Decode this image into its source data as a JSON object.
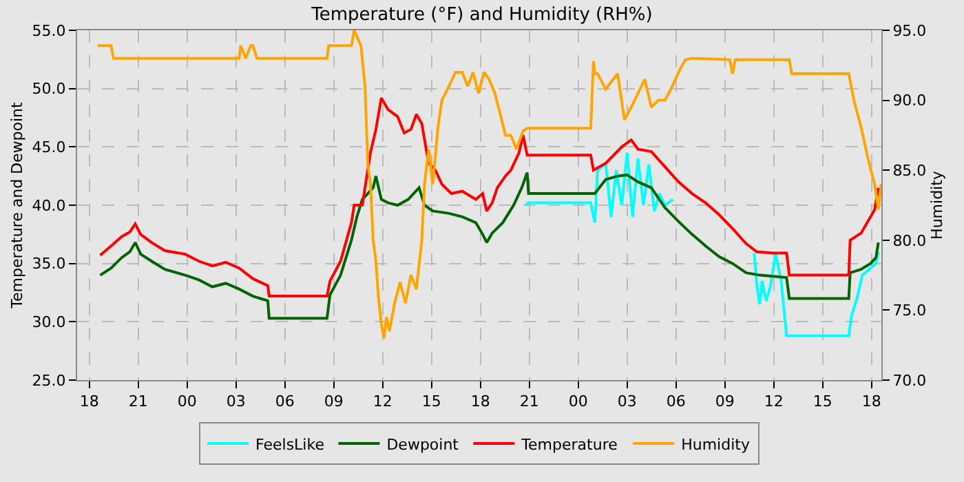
{
  "chart_data": {
    "type": "line",
    "title": "Temperature (°F) and Humidity (RH%)",
    "ylabel": "Temperature and Dewpoint",
    "y2label": "Humidity",
    "xlim": [
      "2000-01-01T17:15",
      "2000-01-03T18:36"
    ],
    "xticks": [
      {
        "value": "2000-01-01T18:00",
        "label": "18"
      },
      {
        "value": "2000-01-01T21:00",
        "label": "21"
      },
      {
        "value": "2000-01-02T00:00",
        "label": "00"
      },
      {
        "value": "2000-01-02T03:00",
        "label": "03"
      },
      {
        "value": "2000-01-02T06:00",
        "label": "06"
      },
      {
        "value": "2000-01-02T09:00",
        "label": "09"
      },
      {
        "value": "2000-01-02T12:00",
        "label": "12"
      },
      {
        "value": "2000-01-02T15:00",
        "label": "15"
      },
      {
        "value": "2000-01-02T18:00",
        "label": "18"
      },
      {
        "value": "2000-01-02T21:00",
        "label": "21"
      },
      {
        "value": "2000-01-03T00:00",
        "label": "00"
      },
      {
        "value": "2000-01-03T03:00",
        "label": "03"
      },
      {
        "value": "2000-01-03T06:00",
        "label": "06"
      },
      {
        "value": "2000-01-03T09:00",
        "label": "09"
      },
      {
        "value": "2000-01-03T12:00",
        "label": "12"
      },
      {
        "value": "2000-01-03T15:00",
        "label": "15"
      },
      {
        "value": "2000-01-03T18:00",
        "label": "18"
      }
    ],
    "ylim": [
      25,
      55
    ],
    "yticks": [
      {
        "value": 25,
        "label": "25.0"
      },
      {
        "value": 30,
        "label": "30.0"
      },
      {
        "value": 35,
        "label": "35.0"
      },
      {
        "value": 40,
        "label": "40.0"
      },
      {
        "value": 45,
        "label": "45.0"
      },
      {
        "value": 50,
        "label": "50.0"
      },
      {
        "value": 55,
        "label": "55.0"
      }
    ],
    "y2lim": [
      70,
      95
    ],
    "y2ticks": [
      {
        "value": 70,
        "label": "70.0"
      },
      {
        "value": 75,
        "label": "75.0"
      },
      {
        "value": 80,
        "label": "80.0"
      },
      {
        "value": 85,
        "label": "85.0"
      },
      {
        "value": 90,
        "label": "90.0"
      },
      {
        "value": 95,
        "label": "95.0"
      }
    ],
    "grid": true,
    "legend": "bottom",
    "series": [
      {
        "name": "FeelsLike",
        "color": "#00ffff",
        "x": [
          "2000-01-02T20:47",
          "2000-01-02T20:57",
          "2000-01-03T00:46",
          "2000-01-03T01:01",
          "2000-01-03T01:11",
          "2000-01-03T01:41",
          "2000-01-03T02:01",
          "2000-01-03T02:20",
          "2000-01-03T02:40",
          "2000-01-03T03:00",
          "2000-01-03T03:20",
          "2000-01-03T03:40",
          "2000-01-03T04:00",
          "2000-01-03T04:20",
          "2000-01-03T04:40",
          "2000-01-03T04:59",
          "2000-01-03T05:19",
          "2000-01-03T05:49",
          "2000-01-03T05:54",
          "2000-01-03T10:48",
          "2000-01-03T10:58",
          "2000-01-03T11:08",
          "2000-01-03T11:17",
          "2000-01-03T11:32",
          "2000-01-03T11:47",
          "2000-01-03T12:07",
          "2000-01-03T12:27",
          "2000-01-03T12:47",
          "2000-01-03T12:57",
          "2000-01-03T16:36",
          "2000-01-03T16:46",
          "2000-01-03T17:06",
          "2000-01-03T17:26",
          "2000-01-03T17:56",
          "2000-01-03T18:16",
          "2000-01-03T18:25"
        ],
        "values": [
          40.0,
          40.2,
          40.2,
          38.5,
          43.0,
          43.6,
          39.0,
          43.0,
          40.0,
          44.5,
          39.0,
          44.0,
          40.0,
          43.5,
          39.5,
          41.0,
          40.0,
          40.5,
          null,
          35.9,
          33.0,
          31.5,
          33.5,
          31.8,
          33.0,
          35.8,
          33.5,
          28.8,
          28.8,
          28.8,
          30.5,
          32.0,
          34.0,
          34.6,
          35.0,
          36.0
        ]
      },
      {
        "name": "Dewpoint",
        "color": "#006400",
        "x": [
          "2000-01-01T18:40",
          "2000-01-01T19:20",
          "2000-01-01T19:59",
          "2000-01-01T20:29",
          "2000-01-01T20:49",
          "2000-01-01T21:09",
          "2000-01-01T21:49",
          "2000-01-01T22:38",
          "2000-01-01T23:53",
          "2000-01-02T00:43",
          "2000-01-02T01:33",
          "2000-01-02T02:22",
          "2000-01-02T03:12",
          "2000-01-02T04:02",
          "2000-01-02T04:57",
          "2000-01-02T05:02",
          "2000-01-02T08:35",
          "2000-01-02T08:46",
          "2000-01-02T09:25",
          "2000-01-02T10:05",
          "2000-01-02T10:25",
          "2000-01-02T10:45",
          "2000-01-02T11:05",
          "2000-01-02T11:25",
          "2000-01-02T11:35",
          "2000-01-02T11:55",
          "2000-01-02T12:20",
          "2000-01-02T12:55",
          "2000-01-02T13:34",
          "2000-01-02T14:14",
          "2000-01-02T14:34",
          "2000-01-02T15:04",
          "2000-01-02T16:04",
          "2000-01-02T16:53",
          "2000-01-02T17:43",
          "2000-01-02T18:08",
          "2000-01-02T18:23",
          "2000-01-02T18:43",
          "2000-01-02T19:22",
          "2000-01-02T20:02",
          "2000-01-02T20:32",
          "2000-01-02T20:52",
          "2000-01-02T20:57",
          "2000-01-03T00:46",
          "2000-01-03T01:01",
          "2000-01-03T01:41",
          "2000-01-03T02:25",
          "2000-01-03T03:00",
          "2000-01-03T03:40",
          "2000-01-03T04:29",
          "2000-01-03T05:19",
          "2000-01-03T06:09",
          "2000-01-03T06:59",
          "2000-01-03T07:49",
          "2000-01-03T08:38",
          "2000-01-03T09:28",
          "2000-01-03T10:18",
          "2000-01-03T11:08",
          "2000-01-03T11:58",
          "2000-01-03T12:47",
          "2000-01-03T12:57",
          "2000-01-03T16:36",
          "2000-01-03T16:41",
          "2000-01-03T17:21",
          "2000-01-03T17:56",
          "2000-01-03T18:16",
          "2000-01-03T18:25"
        ],
        "values": [
          34.0,
          34.6,
          35.5,
          36.0,
          36.8,
          35.8,
          35.2,
          34.5,
          34.0,
          33.6,
          33.0,
          33.3,
          32.8,
          32.2,
          31.8,
          30.3,
          30.3,
          32.3,
          34.0,
          37.0,
          39.0,
          40.5,
          41.0,
          41.5,
          42.5,
          40.5,
          40.2,
          40.0,
          40.5,
          41.5,
          40.0,
          39.5,
          39.3,
          39.0,
          38.5,
          37.5,
          36.8,
          37.6,
          38.5,
          40.0,
          41.5,
          42.8,
          41.0,
          41.0,
          41.0,
          42.2,
          42.5,
          42.6,
          42.0,
          41.5,
          39.8,
          38.6,
          37.5,
          36.5,
          35.6,
          35.0,
          34.2,
          34.0,
          33.9,
          33.8,
          32.0,
          32.0,
          34.2,
          34.5,
          35.0,
          35.5,
          36.8
        ]
      },
      {
        "name": "Temperature",
        "color": "#ff0000",
        "x": [
          "2000-01-01T18:40",
          "2000-01-01T19:20",
          "2000-01-01T19:59",
          "2000-01-01T20:29",
          "2000-01-01T20:49",
          "2000-01-01T21:09",
          "2000-01-01T21:49",
          "2000-01-01T22:38",
          "2000-01-01T23:53",
          "2000-01-02T00:43",
          "2000-01-02T01:33",
          "2000-01-02T02:22",
          "2000-01-02T03:12",
          "2000-01-02T04:02",
          "2000-01-02T04:57",
          "2000-01-02T05:02",
          "2000-01-02T08:35",
          "2000-01-02T08:46",
          "2000-01-02T09:25",
          "2000-01-02T10:05",
          "2000-01-02T10:15",
          "2000-01-02T10:45",
          "2000-01-02T11:15",
          "2000-01-02T11:35",
          "2000-01-02T11:55",
          "2000-01-02T12:20",
          "2000-01-02T12:55",
          "2000-01-02T13:19",
          "2000-01-02T13:44",
          "2000-01-02T14:04",
          "2000-01-02T14:24",
          "2000-01-02T14:49",
          "2000-01-02T15:14",
          "2000-01-02T15:38",
          "2000-01-02T16:13",
          "2000-01-02T16:53",
          "2000-01-02T17:43",
          "2000-01-02T18:08",
          "2000-01-02T18:23",
          "2000-01-02T18:43",
          "2000-01-02T19:02",
          "2000-01-02T19:32",
          "2000-01-02T19:52",
          "2000-01-02T20:22",
          "2000-01-02T20:37",
          "2000-01-02T20:52",
          "2000-01-03T00:46",
          "2000-01-03T00:56",
          "2000-01-03T01:41",
          "2000-01-03T02:40",
          "2000-01-03T03:15",
          "2000-01-03T03:40",
          "2000-01-03T04:29",
          "2000-01-03T05:19",
          "2000-01-03T06:09",
          "2000-01-03T06:59",
          "2000-01-03T07:49",
          "2000-01-03T08:38",
          "2000-01-03T09:28",
          "2000-01-03T10:18",
          "2000-01-03T10:58",
          "2000-01-03T11:58",
          "2000-01-03T12:47",
          "2000-01-03T12:57",
          "2000-01-03T16:36",
          "2000-01-03T16:41",
          "2000-01-03T17:21",
          "2000-01-03T17:46",
          "2000-01-03T18:11",
          "2000-01-03T18:25"
        ],
        "values": [
          35.7,
          36.5,
          37.3,
          37.7,
          38.4,
          37.5,
          36.8,
          36.1,
          35.8,
          35.2,
          34.8,
          35.1,
          34.6,
          33.7,
          33.1,
          32.2,
          32.2,
          33.5,
          35.2,
          38.5,
          40.0,
          40.0,
          44.5,
          46.5,
          49.2,
          48.2,
          47.6,
          46.2,
          46.5,
          47.8,
          47.0,
          43.6,
          43.0,
          41.8,
          41.0,
          41.2,
          40.5,
          41.0,
          39.5,
          40.2,
          41.5,
          42.5,
          43.0,
          44.5,
          46.0,
          44.3,
          44.3,
          43.0,
          43.6,
          45.0,
          45.6,
          44.8,
          44.6,
          43.3,
          42.0,
          41.0,
          40.2,
          39.2,
          38.0,
          36.7,
          36.0,
          35.9,
          35.9,
          34.0,
          34.0,
          37.0,
          37.6,
          38.6,
          39.6,
          41.5
        ]
      },
      {
        "name": "Humidity",
        "color": "#ffa500",
        "axis": "y2",
        "x": [
          "2000-01-01T18:30",
          "2000-01-01T19:20",
          "2000-01-01T19:29",
          "2000-01-02T03:12",
          "2000-01-02T03:17",
          "2000-01-02T03:36",
          "2000-01-02T03:54",
          "2000-01-02T04:02",
          "2000-01-02T04:17",
          "2000-01-02T08:35",
          "2000-01-02T08:41",
          "2000-01-02T10:05",
          "2000-01-02T10:15",
          "2000-01-02T10:40",
          "2000-01-02T10:55",
          "2000-01-02T11:05",
          "2000-01-02T11:15",
          "2000-01-02T11:25",
          "2000-01-02T11:35",
          "2000-01-02T11:44",
          "2000-01-02T11:55",
          "2000-01-02T12:05",
          "2000-01-02T12:14",
          "2000-01-02T12:25",
          "2000-01-02T12:44",
          "2000-01-02T13:04",
          "2000-01-02T13:24",
          "2000-01-02T13:44",
          "2000-01-02T14:04",
          "2000-01-02T14:24",
          "2000-01-02T14:34",
          "2000-01-02T14:49",
          "2000-01-02T15:04",
          "2000-01-02T15:14",
          "2000-01-02T15:23",
          "2000-01-02T15:38",
          "2000-01-02T16:04",
          "2000-01-02T16:28",
          "2000-01-02T16:53",
          "2000-01-02T17:13",
          "2000-01-02T17:33",
          "2000-01-02T17:53",
          "2000-01-02T18:13",
          "2000-01-02T18:32",
          "2000-01-02T18:53",
          "2000-01-02T19:13",
          "2000-01-02T19:32",
          "2000-01-02T19:52",
          "2000-01-02T20:12",
          "2000-01-02T20:37",
          "2000-01-02T20:52",
          "2000-01-03T00:46",
          "2000-01-03T00:56",
          "2000-01-03T01:01",
          "2000-01-03T01:11",
          "2000-01-03T01:41",
          "2000-01-03T02:25",
          "2000-01-03T02:50",
          "2000-01-03T03:15",
          "2000-01-03T03:40",
          "2000-01-03T04:05",
          "2000-01-03T04:29",
          "2000-01-03T04:55",
          "2000-01-03T05:19",
          "2000-01-03T05:44",
          "2000-01-03T06:09",
          "2000-01-03T06:34",
          "2000-01-03T06:59",
          "2000-01-03T09:18",
          "2000-01-03T09:28",
          "2000-01-03T09:38",
          "2000-01-03T12:57",
          "2000-01-03T13:06",
          "2000-01-03T16:36",
          "2000-01-03T16:56",
          "2000-01-03T17:21",
          "2000-01-03T17:46",
          "2000-01-03T18:11",
          "2000-01-03T18:25",
          "2000-01-03T18:35"
        ],
        "values": [
          93.9,
          93.9,
          93.0,
          93.0,
          93.9,
          93.0,
          93.9,
          93.9,
          93.0,
          93.0,
          93.9,
          93.9,
          95.0,
          93.9,
          91.0,
          85.5,
          84.0,
          80.0,
          78.5,
          76.0,
          74.0,
          73.0,
          74.5,
          73.5,
          75.5,
          77.0,
          75.5,
          77.5,
          76.5,
          80.0,
          84.0,
          86.5,
          84.0,
          86.0,
          88.0,
          90.0,
          91.0,
          92.0,
          92.0,
          91.0,
          92.0,
          90.5,
          92.0,
          91.5,
          90.5,
          89.0,
          87.5,
          87.5,
          86.5,
          87.8,
          88.0,
          88.0,
          92.8,
          91.9,
          91.9,
          90.8,
          91.9,
          88.6,
          89.5,
          90.5,
          91.5,
          89.5,
          90.0,
          90.0,
          90.9,
          92.0,
          92.9,
          93.0,
          92.9,
          91.9,
          92.9,
          92.9,
          91.9,
          91.9,
          89.9,
          88.1,
          85.9,
          84.0,
          82.2,
          84.0
        ]
      }
    ]
  }
}
